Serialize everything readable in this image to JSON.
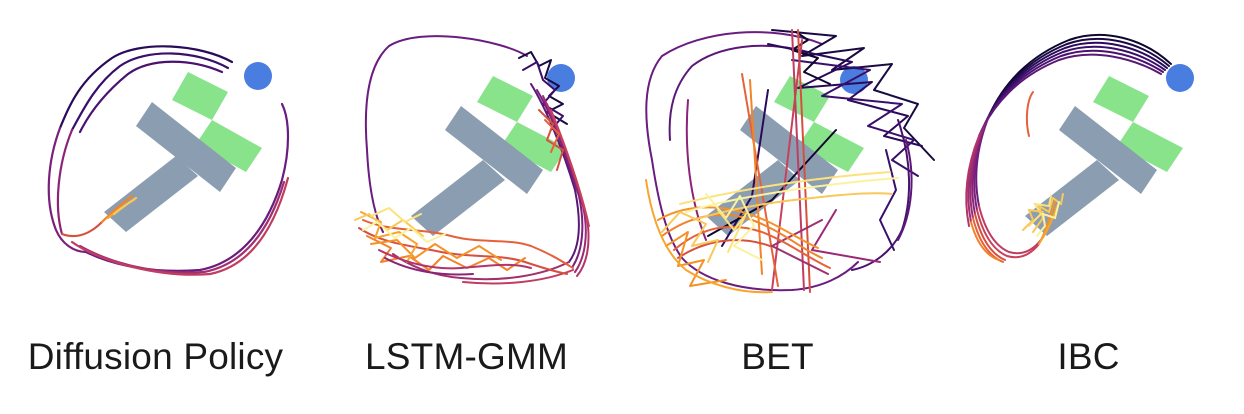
{
  "panels": [
    {
      "id": "diffusion",
      "label": "Diffusion Policy"
    },
    {
      "id": "lstm",
      "label": "LSTM-GMM"
    },
    {
      "id": "bet",
      "label": "BET"
    },
    {
      "id": "ibc",
      "label": "IBC"
    }
  ],
  "colors": {
    "t_block": "#8b9db0",
    "t_target": "#88e38a",
    "agent": "#4a7de0",
    "trajectory_colormap": [
      "#10072e",
      "#3a0f6b",
      "#6a1c80",
      "#9a2a75",
      "#c9405a",
      "#e6613a",
      "#f59227",
      "#f8c85a",
      "#fbf2a0"
    ]
  }
}
